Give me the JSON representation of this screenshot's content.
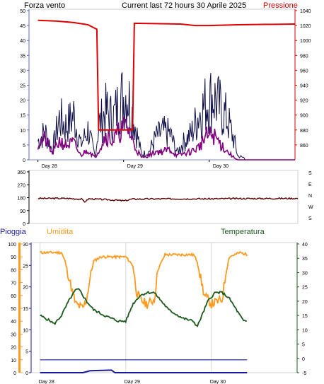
{
  "header": {
    "left_title": "Forza vento",
    "center_title": "Current last 72 hours 30 Aprile 2025",
    "right_title": "Pressione"
  },
  "labels": {
    "pioggia": "Pioggia",
    "umidita": "Umidita",
    "temperatura": "Temperatura"
  },
  "colors": {
    "pressure": "#e00000",
    "wind": "#101048",
    "gust": "#800080",
    "direction": "#5a0000",
    "humidity": "#ff9a1e",
    "temperature": "#1a5a1a",
    "rain": "#1a1aa0",
    "rain_axis": "#ff9a1e"
  },
  "chart_data": [
    {
      "type": "line",
      "name": "wind_pressure",
      "x_ticks": [
        "Day 28",
        "Day 29",
        "Day 30"
      ],
      "y_left_ticks": [
        "0",
        "5",
        "10",
        "15",
        "20",
        "25",
        "30",
        "35",
        "40",
        "45",
        "50"
      ],
      "y_left_range": [
        0,
        50
      ],
      "y_right_ticks": [
        "860",
        "880",
        "900",
        "920",
        "940",
        "960",
        "980",
        "1000",
        "1020",
        "1040"
      ],
      "y_right_range": [
        840,
        1040
      ],
      "series": [
        {
          "key": "pressure",
          "axis": "right",
          "points": [
            [
              0,
              1027
            ],
            [
              5,
              1026
            ],
            [
              10,
              1024
            ],
            [
              14,
              1021
            ],
            [
              16.5,
              1015
            ],
            [
              17,
              880
            ],
            [
              26.5,
              880
            ],
            [
              27,
              1023
            ],
            [
              40,
              1022
            ],
            [
              44,
              1020
            ],
            [
              48,
              1020
            ],
            [
              56,
              1021
            ],
            [
              72,
              1022
            ]
          ]
        },
        {
          "key": "wind_envelope",
          "axis": "left",
          "points": [
            [
              0,
              10
            ],
            [
              2,
              15
            ],
            [
              4,
              5
            ],
            [
              6,
              22
            ],
            [
              8,
              18
            ],
            [
              10,
              24
            ],
            [
              12,
              8
            ],
            [
              14,
              16
            ],
            [
              16,
              2
            ],
            [
              17,
              18
            ],
            [
              19,
              26
            ],
            [
              21,
              22
            ],
            [
              23,
              32
            ],
            [
              25,
              36
            ],
            [
              27,
              20
            ],
            [
              29,
              3
            ],
            [
              31,
              4
            ],
            [
              33,
              12
            ],
            [
              35,
              15
            ],
            [
              37,
              14
            ],
            [
              39,
              4
            ],
            [
              41,
              10
            ],
            [
              43,
              14
            ],
            [
              45,
              24
            ],
            [
              47,
              30
            ],
            [
              49,
              34
            ],
            [
              51,
              28
            ],
            [
              53,
              22
            ],
            [
              55,
              10
            ],
            [
              56,
              2
            ],
            [
              58,
              1
            ]
          ]
        },
        {
          "key": "gust_envelope",
          "axis": "left",
          "points": [
            [
              0,
              8
            ],
            [
              2,
              10
            ],
            [
              4,
              3
            ],
            [
              6,
              9
            ],
            [
              8,
              7
            ],
            [
              10,
              8
            ],
            [
              12,
              2
            ],
            [
              14,
              5
            ],
            [
              16,
              1
            ],
            [
              17,
              5
            ],
            [
              19,
              12
            ],
            [
              21,
              9
            ],
            [
              23,
              14
            ],
            [
              25,
              16
            ],
            [
              27,
              7
            ],
            [
              29,
              1
            ],
            [
              31,
              2
            ],
            [
              33,
              4
            ],
            [
              35,
              4
            ],
            [
              37,
              5
            ],
            [
              39,
              2
            ],
            [
              41,
              3
            ],
            [
              43,
              4
            ],
            [
              45,
              6
            ],
            [
              47,
              11
            ],
            [
              49,
              12
            ],
            [
              51,
              8
            ],
            [
              53,
              4
            ],
            [
              55,
              1
            ],
            [
              56,
              0
            ],
            [
              58,
              0
            ]
          ]
        }
      ]
    },
    {
      "type": "line",
      "name": "wind_direction",
      "y_ticks": [
        "0",
        "90",
        "180",
        "270",
        "360"
      ],
      "y_range": [
        0,
        360
      ],
      "side_labels": [
        "S",
        "E",
        "N",
        "W",
        "S"
      ],
      "series": [
        {
          "key": "direction",
          "points": [
            [
              0,
              175
            ],
            [
              8,
              175
            ],
            [
              12,
              170
            ],
            [
              13,
              150
            ],
            [
              14,
              172
            ],
            [
              20,
              165
            ],
            [
              24,
              158
            ],
            [
              26,
              170
            ],
            [
              36,
              172
            ],
            [
              48,
              172
            ],
            [
              58,
              174
            ],
            [
              72,
              175
            ]
          ]
        }
      ]
    },
    {
      "type": "line",
      "name": "rain_humidity_temperature",
      "x_ticks": [
        "Day 28",
        "Day 29",
        "Day 30"
      ],
      "rain_ticks": [
        "0",
        "10",
        "20",
        "30",
        "40",
        "50",
        "60",
        "70",
        "80",
        "90",
        "100"
      ],
      "rain_range": [
        0,
        100
      ],
      "humidity_ticks": [
        "0",
        "5",
        "10",
        "15",
        "20",
        "25",
        "30"
      ],
      "humidity_range": [
        0,
        30
      ],
      "temperature_ticks": [
        "-5",
        "0",
        "5",
        "10",
        "15",
        "20",
        "25",
        "30",
        "35",
        "40"
      ],
      "temperature_range": [
        -5,
        40
      ],
      "series": [
        {
          "key": "humidity",
          "axis": "humidity",
          "points": [
            [
              0,
              28
            ],
            [
              6,
              28
            ],
            [
              7,
              26
            ],
            [
              9,
              19
            ],
            [
              10,
              16
            ],
            [
              12,
              15
            ],
            [
              13,
              17
            ],
            [
              14,
              22
            ],
            [
              15,
              26
            ],
            [
              17,
              27
            ],
            [
              24,
              27
            ],
            [
              26,
              25
            ],
            [
              27,
              19
            ],
            [
              28,
              17
            ],
            [
              30,
              16
            ],
            [
              32,
              17
            ],
            [
              33,
              24
            ],
            [
              35,
              27.5
            ],
            [
              43,
              27.5
            ],
            [
              44,
              26
            ],
            [
              46,
              18
            ],
            [
              48,
              16
            ],
            [
              51,
              17
            ],
            [
              52,
              23
            ],
            [
              53,
              27
            ],
            [
              56,
              28
            ],
            [
              58,
              27.5
            ]
          ]
        },
        {
          "key": "temperature",
          "axis": "temperature",
          "points": [
            [
              0,
              15
            ],
            [
              3,
              13
            ],
            [
              4,
              12
            ],
            [
              6,
              15
            ],
            [
              8,
              20
            ],
            [
              10,
              24
            ],
            [
              11,
              24
            ],
            [
              13,
              20
            ],
            [
              15,
              17
            ],
            [
              18,
              15
            ],
            [
              22,
              13
            ],
            [
              24,
              13
            ],
            [
              26,
              19
            ],
            [
              28,
              22
            ],
            [
              30,
              23
            ],
            [
              32,
              23
            ],
            [
              34,
              20
            ],
            [
              36,
              17
            ],
            [
              40,
              14
            ],
            [
              43,
              13
            ],
            [
              44,
              11
            ],
            [
              45,
              14
            ],
            [
              47,
              20
            ],
            [
              49,
              23
            ],
            [
              51,
              23
            ],
            [
              53,
              21
            ],
            [
              55,
              17
            ],
            [
              57,
              13
            ],
            [
              58,
              13
            ]
          ]
        },
        {
          "key": "rain",
          "axis": "rain",
          "points": [
            [
              0,
              0
            ],
            [
              12,
              0
            ],
            [
              14,
              1.5
            ],
            [
              20,
              2
            ],
            [
              21,
              0
            ],
            [
              58,
              0
            ]
          ]
        },
        {
          "key": "rain_total_line",
          "axis": "rain",
          "points": [
            [
              0,
              10
            ],
            [
              58,
              10
            ]
          ]
        }
      ]
    }
  ]
}
